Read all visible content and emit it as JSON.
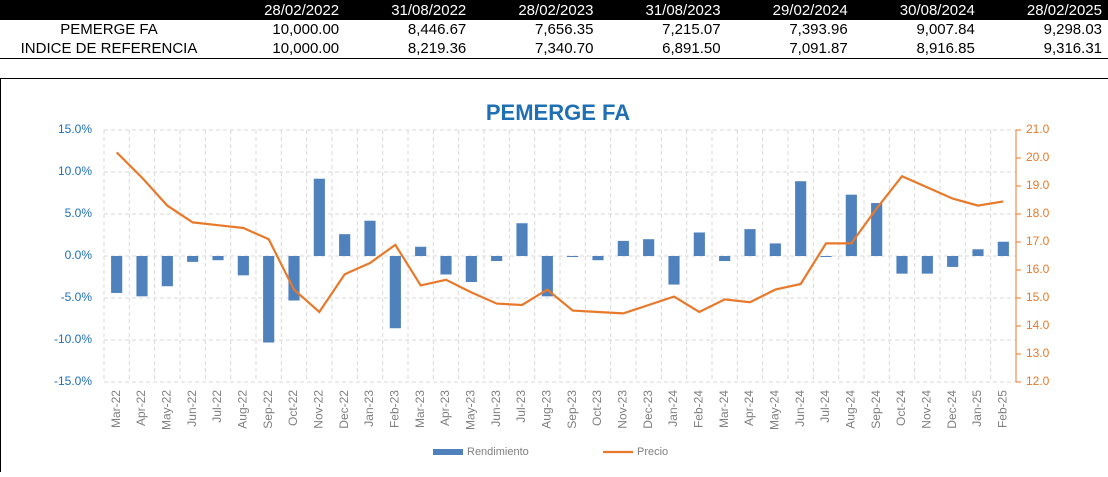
{
  "table": {
    "header": [
      "28/02/2022",
      "31/08/2022",
      "28/02/2023",
      "31/08/2023",
      "29/02/2024",
      "30/08/2024",
      "28/02/2025"
    ],
    "rows": [
      {
        "label": "PEMERGE FA",
        "values": [
          "10,000.00",
          "8,446.67",
          "7,656.35",
          "7,215.07",
          "7,393.96",
          "9,007.84",
          "9,298.03"
        ]
      },
      {
        "label": "INDICE DE REFERENCIA",
        "values": [
          "10,000.00",
          "8,219.36",
          "7,340.70",
          "6,891.50",
          "7,091.87",
          "8,916.85",
          "9,316.31"
        ]
      }
    ]
  },
  "chart_data": {
    "type": "bar-line",
    "title": "PEMERGE FA",
    "categories": [
      "Mar-22",
      "Apr-22",
      "May-22",
      "Jun-22",
      "Jul-22",
      "Aug-22",
      "Sep-22",
      "Oct-22",
      "Nov-22",
      "Dec-22",
      "Jan-23",
      "Feb-23",
      "Mar-23",
      "Apr-23",
      "May-23",
      "Jun-23",
      "Jul-23",
      "Aug-23",
      "Sep-23",
      "Oct-23",
      "Nov-23",
      "Dec-23",
      "Jan-24",
      "Feb-24",
      "Mar-24",
      "Apr-24",
      "May-24",
      "Jun-24",
      "Jul-24",
      "Aug-24",
      "Sep-24",
      "Oct-24",
      "Nov-24",
      "Dec-24",
      "Jan-25",
      "Feb-25"
    ],
    "series": [
      {
        "name": "Rendimiento",
        "type": "bar",
        "color": "#4f81bd",
        "axis": "y",
        "values": [
          -4.4,
          -4.8,
          -3.6,
          -0.7,
          -0.5,
          -2.3,
          -10.3,
          -5.3,
          9.2,
          2.6,
          4.2,
          -8.6,
          1.1,
          -2.2,
          -3.1,
          -0.6,
          3.9,
          -4.8,
          -0.1,
          -0.5,
          1.8,
          2.0,
          -3.4,
          2.8,
          -0.6,
          3.2,
          1.5,
          8.9,
          -0.1,
          7.3,
          6.3,
          -2.1,
          -2.1,
          -1.3,
          0.8,
          1.7
        ]
      },
      {
        "name": "Precio",
        "type": "line",
        "color": "#e8792b",
        "axis": "y2",
        "values": [
          20.2,
          19.3,
          18.3,
          17.7,
          17.6,
          17.5,
          17.1,
          15.3,
          14.5,
          15.85,
          16.25,
          16.9,
          15.45,
          15.65,
          15.2,
          14.8,
          14.75,
          15.3,
          14.55,
          14.5,
          14.45,
          14.75,
          15.05,
          14.5,
          14.95,
          14.85,
          15.3,
          15.5,
          16.95,
          16.95,
          18.2,
          19.35,
          18.95,
          18.55,
          18.3,
          18.45
        ]
      }
    ],
    "ylim": [
      -15,
      15
    ],
    "yticks": [
      {
        "value": -15,
        "label": "-15.0%"
      },
      {
        "value": -10,
        "label": "-10.0%"
      },
      {
        "value": -5,
        "label": "-5.0%"
      },
      {
        "value": 0,
        "label": "0.0%"
      },
      {
        "value": 5,
        "label": "5.0%"
      },
      {
        "value": 10,
        "label": "10.0%"
      },
      {
        "value": 15,
        "label": "15.0%"
      }
    ],
    "y2lim": [
      12,
      21
    ],
    "y2ticks": [
      {
        "value": 12,
        "label": "12.0"
      },
      {
        "value": 13,
        "label": "13.0"
      },
      {
        "value": 14,
        "label": "14.0"
      },
      {
        "value": 15,
        "label": "15.0"
      },
      {
        "value": 16,
        "label": "16.0"
      },
      {
        "value": 17,
        "label": "17.0"
      },
      {
        "value": 18,
        "label": "18.0"
      },
      {
        "value": 19,
        "label": "19.0"
      },
      {
        "value": 20,
        "label": "20.0"
      },
      {
        "value": 21,
        "label": "21.0"
      }
    ],
    "grid": true,
    "legend": "bottom"
  }
}
